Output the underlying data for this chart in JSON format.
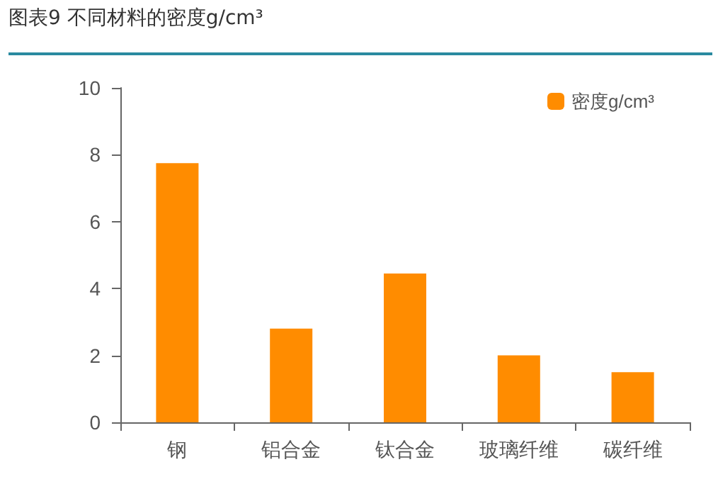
{
  "chart_data": {
    "type": "bar",
    "title": "图表9 不同材料的密度g/cm³",
    "categories": [
      "钢",
      "铝合金",
      "钛合金",
      "玻璃纤维",
      "碳纤维"
    ],
    "series": [
      {
        "name": "密度g/cm³",
        "color": "#ff8c00",
        "values": [
          7.75,
          2.8,
          4.45,
          2.0,
          1.5
        ]
      }
    ],
    "ylim": [
      0,
      10
    ],
    "yticks": [
      0,
      2,
      4,
      6,
      8,
      10
    ],
    "grid": false,
    "legend": "top right"
  }
}
